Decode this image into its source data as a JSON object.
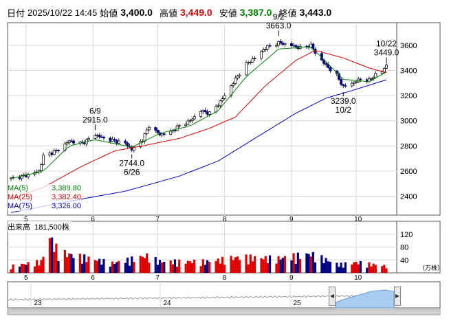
{
  "header": {
    "interval": "日付",
    "datetime": "2025/10/22 14:45",
    "open_label": "始値",
    "open": "3,400.0",
    "high_label": "高値",
    "high": "3,449.0",
    "low_label": "安値",
    "low": "3,387.0",
    "close_label": "終値",
    "close": "3,443.0"
  },
  "ma_legend": [
    {
      "label": "MA(5)",
      "value": "3,389.80",
      "color": "#008000"
    },
    {
      "label": "MA(25)",
      "value": "3,382.40",
      "color": "#e00000"
    },
    {
      "label": "MA(75)",
      "value": "3,326.00",
      "color": "#0000cc"
    }
  ],
  "volume_label": "出来高",
  "volume_value": "181,500株",
  "volume_unit": "（万株）",
  "colors": {
    "up": "#ffffff",
    "down": "#000080",
    "vol_up": "#e00000",
    "vol_down": "#000080",
    "vol_flat": "#888888",
    "grid": "#d8d8d8",
    "ma5": "#008000",
    "ma25": "#e00000",
    "ma75": "#0000cc",
    "navigator_fill": "#aaccf0"
  },
  "chart_data": [
    {
      "type": "candlestick",
      "title": "",
      "y_ticks": [
        2400,
        2600,
        2800,
        3000,
        3200,
        3400,
        3600
      ],
      "ylim": [
        2250,
        3780
      ],
      "x_month_labels": [
        "5",
        "6",
        "7",
        "8",
        "9",
        "10"
      ],
      "start_date": "2025-05-01",
      "end_date": "2025-10-22",
      "annotations": [
        {
          "date": "6/9",
          "value": "2915.0",
          "price": 2915,
          "position": "above"
        },
        {
          "date": "6/26",
          "value": "2744.0",
          "price": 2744,
          "position": "below"
        },
        {
          "date": "9/2",
          "value": "3663.0",
          "price": 3663,
          "position": "above"
        },
        {
          "date": "10/2",
          "value": "3239.0",
          "price": 3239,
          "position": "below"
        },
        {
          "date": "10/22",
          "value": "3449.0",
          "price": 3449,
          "position": "above"
        }
      ],
      "close_path": [
        [
          "2025-05-01",
          2540
        ],
        [
          "2025-05-09",
          2570
        ],
        [
          "2025-05-14",
          2600
        ],
        [
          "2025-05-16",
          2720
        ],
        [
          "2025-05-22",
          2760
        ],
        [
          "2025-05-28",
          2840
        ],
        [
          "2025-06-03",
          2820
        ],
        [
          "2025-06-09",
          2890
        ],
        [
          "2025-06-13",
          2860
        ],
        [
          "2025-06-18",
          2840
        ],
        [
          "2025-06-23",
          2820
        ],
        [
          "2025-06-26",
          2770
        ],
        [
          "2025-07-01",
          2850
        ],
        [
          "2025-07-04",
          2960
        ],
        [
          "2025-07-09",
          2890
        ],
        [
          "2025-07-14",
          2910
        ],
        [
          "2025-07-18",
          2960
        ],
        [
          "2025-07-23",
          3000
        ],
        [
          "2025-07-28",
          3080
        ],
        [
          "2025-08-01",
          3060
        ],
        [
          "2025-08-05",
          3130
        ],
        [
          "2025-08-08",
          3200
        ],
        [
          "2025-08-13",
          3330
        ],
        [
          "2025-08-18",
          3450
        ],
        [
          "2025-08-22",
          3500
        ],
        [
          "2025-08-27",
          3580
        ],
        [
          "2025-09-02",
          3620
        ],
        [
          "2025-09-08",
          3600
        ],
        [
          "2025-09-12",
          3580
        ],
        [
          "2025-09-17",
          3600
        ],
        [
          "2025-09-19",
          3540
        ],
        [
          "2025-09-24",
          3440
        ],
        [
          "2025-09-29",
          3360
        ],
        [
          "2025-10-02",
          3270
        ],
        [
          "2025-10-06",
          3300
        ],
        [
          "2025-10-10",
          3330
        ],
        [
          "2025-10-14",
          3320
        ],
        [
          "2025-10-17",
          3370
        ],
        [
          "2025-10-20",
          3390
        ],
        [
          "2025-10-22",
          3443
        ]
      ],
      "ma_series": [
        {
          "name": "MA(5)",
          "color": "#008000",
          "points": [
            [
              "2025-05-01",
              2540
            ],
            [
              "2025-05-16",
              2600
            ],
            [
              "2025-05-28",
              2800
            ],
            [
              "2025-06-09",
              2850
            ],
            [
              "2025-06-26",
              2790
            ],
            [
              "2025-07-09",
              2900
            ],
            [
              "2025-07-23",
              2960
            ],
            [
              "2025-08-05",
              3080
            ],
            [
              "2025-08-18",
              3350
            ],
            [
              "2025-09-02",
              3570
            ],
            [
              "2025-09-17",
              3590
            ],
            [
              "2025-10-02",
              3330
            ],
            [
              "2025-10-14",
              3310
            ],
            [
              "2025-10-22",
              3390
            ]
          ]
        },
        {
          "name": "MA(25)",
          "color": "#e00000",
          "points": [
            [
              "2025-05-01",
              2380
            ],
            [
              "2025-05-16",
              2470
            ],
            [
              "2025-06-03",
              2640
            ],
            [
              "2025-06-18",
              2760
            ],
            [
              "2025-07-01",
              2800
            ],
            [
              "2025-07-18",
              2860
            ],
            [
              "2025-08-01",
              2940
            ],
            [
              "2025-08-13",
              3030
            ],
            [
              "2025-08-27",
              3280
            ],
            [
              "2025-09-10",
              3480
            ],
            [
              "2025-09-19",
              3560
            ],
            [
              "2025-10-02",
              3500
            ],
            [
              "2025-10-14",
              3420
            ],
            [
              "2025-10-22",
              3382
            ]
          ]
        },
        {
          "name": "MA(75)",
          "color": "#0000cc",
          "points": [
            [
              "2025-05-01",
              2270
            ],
            [
              "2025-05-28",
              2360
            ],
            [
              "2025-06-23",
              2440
            ],
            [
              "2025-07-18",
              2560
            ],
            [
              "2025-08-05",
              2680
            ],
            [
              "2025-08-22",
              2860
            ],
            [
              "2025-09-10",
              3060
            ],
            [
              "2025-09-24",
              3180
            ],
            [
              "2025-10-06",
              3240
            ],
            [
              "2025-10-22",
              3326
            ]
          ]
        }
      ]
    },
    {
      "type": "bar",
      "title": "出来高",
      "y_ticks": [
        40,
        80,
        120
      ],
      "ylim": [
        0,
        160
      ],
      "unit": "万株",
      "volume_path": [
        [
          "2025-05-01",
          18
        ],
        [
          "2025-05-15",
          30
        ],
        [
          "2025-05-19",
          95
        ],
        [
          "2025-05-23",
          55
        ],
        [
          "2025-06-05",
          40
        ],
        [
          "2025-06-17",
          26
        ],
        [
          "2025-07-03",
          45
        ],
        [
          "2025-07-09",
          30
        ],
        [
          "2025-07-31",
          30
        ],
        [
          "2025-08-15",
          42
        ],
        [
          "2025-09-01",
          38
        ],
        [
          "2025-09-17",
          50
        ],
        [
          "2025-09-30",
          22
        ],
        [
          "2025-10-08",
          28
        ],
        [
          "2025-10-22",
          18
        ]
      ]
    }
  ],
  "navigator": {
    "year_labels": [
      "23",
      "24",
      "25"
    ],
    "left_handle": "◀",
    "right_handle": "▶"
  }
}
